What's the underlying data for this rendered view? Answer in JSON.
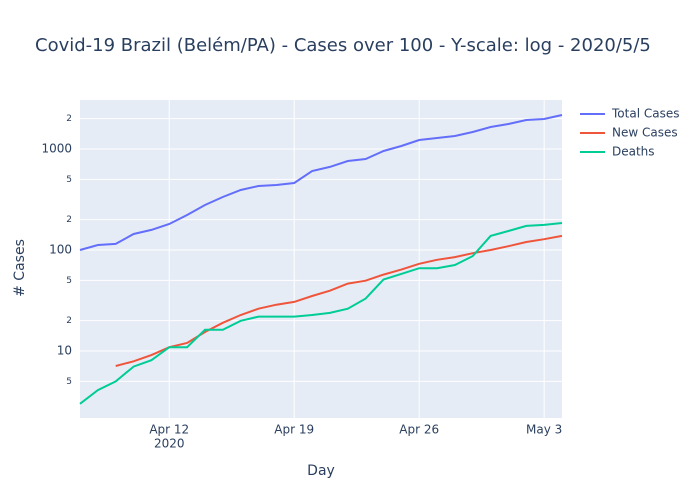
{
  "chart_data": {
    "type": "line",
    "title": "Covid-19 Brazil (Belém/PA) - Cases over 100 - Y-scale: log - 2020/5/5",
    "x_label": "Day",
    "y_label": "# Cases",
    "x": [
      "2020-04-07",
      "2020-04-08",
      "2020-04-09",
      "2020-04-10",
      "2020-04-11",
      "2020-04-12",
      "2020-04-13",
      "2020-04-14",
      "2020-04-15",
      "2020-04-16",
      "2020-04-17",
      "2020-04-18",
      "2020-04-19",
      "2020-04-20",
      "2020-04-21",
      "2020-04-22",
      "2020-04-23",
      "2020-04-24",
      "2020-04-25",
      "2020-04-26",
      "2020-04-27",
      "2020-04-28",
      "2020-04-29",
      "2020-04-30",
      "2020-05-01",
      "2020-05-02",
      "2020-05-03",
      "2020-05-04"
    ],
    "series": [
      {
        "name": "Total Cases",
        "color": "#636efa",
        "values": [
          100,
          112,
          115,
          144,
          158,
          181,
          222,
          279,
          335,
          393,
          430,
          440,
          461,
          606,
          665,
          760,
          796,
          955,
          1070,
          1228,
          1285,
          1345,
          1474,
          1650,
          1768,
          1937,
          1982,
          2172
        ]
      },
      {
        "name": "New Cases",
        "color": "#ef553b",
        "values": [
          null,
          null,
          7.1,
          7.9,
          9.1,
          10.9,
          12.0,
          15.4,
          19.0,
          22.7,
          26.2,
          28.7,
          30.6,
          35,
          39.5,
          46.5,
          49.6,
          57,
          64,
          73,
          80,
          85,
          93,
          100,
          109,
          120,
          128,
          138
        ]
      },
      {
        "name": "Deaths",
        "color": "#00cc96",
        "values": [
          3.0,
          4.1,
          5.0,
          7.0,
          8.1,
          10.9,
          10.9,
          16.2,
          16.2,
          19.9,
          21.9,
          21.9,
          21.9,
          22.7,
          23.8,
          26.2,
          33,
          51,
          58,
          66,
          66,
          71,
          87,
          138,
          154,
          173,
          177,
          185
        ]
      }
    ],
    "xlim": [
      "2020-04-07",
      "2020-05-04"
    ],
    "xticks": [
      {
        "value": "2020-04-12",
        "label": "Apr 12"
      },
      {
        "value": "2020-04-19",
        "label": "Apr 19"
      },
      {
        "value": "2020-04-26",
        "label": "Apr 26"
      },
      {
        "value": "2020-05-03",
        "label": "May 3"
      }
    ],
    "x_year_label": "2020",
    "ylim": [
      2.17,
      3055
    ],
    "log_y": true,
    "yticks": [
      5,
      10,
      {
        "value": 20,
        "label": "2"
      },
      {
        "value": 50,
        "label": "5"
      },
      100,
      {
        "value": 200,
        "label": "2"
      },
      {
        "value": 500,
        "label": "5"
      },
      1000,
      {
        "value": 2000,
        "label": "2"
      }
    ],
    "grid": true,
    "legend": "top-right"
  }
}
